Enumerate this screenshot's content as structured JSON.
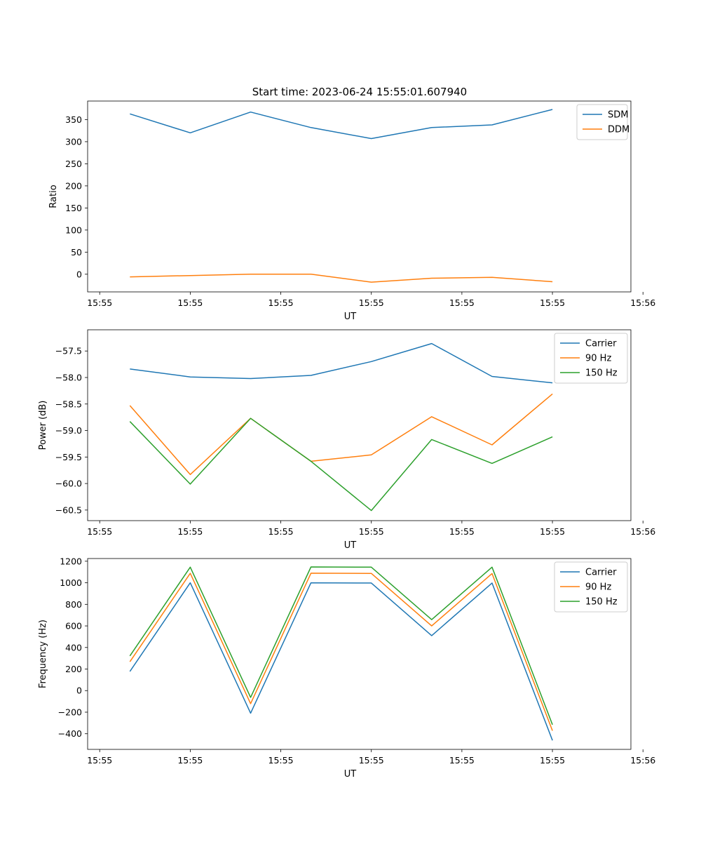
{
  "figure": {
    "title": "Start time: 2023-06-24 15:55:01.607940"
  },
  "colors": {
    "blue": "#1f77b4",
    "orange": "#ff7f0e",
    "green": "#2ca02c"
  },
  "chart_data": [
    {
      "type": "line",
      "title": "Start time: 2023-06-24 15:55:01.607940",
      "xlabel": "UT",
      "ylabel": "Ratio",
      "x": [
        1,
        2,
        3,
        4,
        5,
        6,
        7,
        8
      ],
      "xlim": [
        0.3,
        9.3
      ],
      "xticks": [
        0.5,
        2,
        3.5,
        5,
        6.5,
        8,
        9.5
      ],
      "xtick_labels": [
        "15:55",
        "15:55",
        "15:55",
        "15:55",
        "15:55",
        "15:55",
        "15:56"
      ],
      "ylim": [
        -40,
        392
      ],
      "yticks": [
        0,
        50,
        100,
        150,
        200,
        250,
        300,
        350
      ],
      "ytick_labels": [
        "0",
        "50",
        "100",
        "150",
        "200",
        "250",
        "300",
        "350"
      ],
      "legend": "top-right",
      "grid": false,
      "series": [
        {
          "name": "SDM",
          "color": "#1f77b4",
          "values": [
            363,
            320,
            367,
            332,
            307,
            332,
            338,
            373
          ]
        },
        {
          "name": "DDM",
          "color": "#ff7f0e",
          "values": [
            -6,
            -3,
            0,
            0,
            -18,
            -9,
            -7,
            -17
          ]
        }
      ]
    },
    {
      "type": "line",
      "xlabel": "UT",
      "ylabel": "Power (dB)",
      "x": [
        1,
        2,
        3,
        4,
        5,
        6,
        7,
        8
      ],
      "xlim": [
        0.3,
        9.3
      ],
      "xticks": [
        0.5,
        2,
        3.5,
        5,
        6.5,
        8,
        9.5
      ],
      "xtick_labels": [
        "15:55",
        "15:55",
        "15:55",
        "15:55",
        "15:55",
        "15:55",
        "15:56"
      ],
      "ylim": [
        -60.7,
        -57.1
      ],
      "yticks": [
        -60.5,
        -60.0,
        -59.5,
        -59.0,
        -58.5,
        -58.0,
        -57.5
      ],
      "ytick_labels": [
        "−60.5",
        "−60.0",
        "−59.5",
        "−59.0",
        "−58.5",
        "−58.0",
        "−57.5"
      ],
      "legend": "top-right",
      "grid": false,
      "series": [
        {
          "name": "Carrier",
          "color": "#1f77b4",
          "values": [
            -57.84,
            -57.99,
            -58.02,
            -57.96,
            -57.7,
            -57.36,
            -57.98,
            -58.1
          ]
        },
        {
          "name": "90 Hz",
          "color": "#ff7f0e",
          "values": [
            -58.53,
            -59.83,
            -58.77,
            -59.58,
            -59.46,
            -58.74,
            -59.27,
            -58.31
          ]
        },
        {
          "name": "150 Hz",
          "color": "#2ca02c",
          "values": [
            -58.83,
            -60.01,
            -58.77,
            -59.58,
            -60.51,
            -59.17,
            -59.62,
            -59.12
          ]
        }
      ]
    },
    {
      "type": "line",
      "xlabel": "UT",
      "ylabel": "Frequency (Hz)",
      "x": [
        1,
        2,
        3,
        4,
        5,
        6,
        7,
        8
      ],
      "xlim": [
        0.3,
        9.3
      ],
      "xticks": [
        0.5,
        2,
        3.5,
        5,
        6.5,
        8,
        9.5
      ],
      "xtick_labels": [
        "15:55",
        "15:55",
        "15:55",
        "15:55",
        "15:55",
        "15:55",
        "15:56"
      ],
      "ylim": [
        -545,
        1225
      ],
      "yticks": [
        -400,
        -200,
        0,
        200,
        400,
        600,
        800,
        1000,
        1200
      ],
      "ytick_labels": [
        "−400",
        "−200",
        "0",
        "200",
        "400",
        "600",
        "800",
        "1000",
        "1200"
      ],
      "legend": "top-right",
      "grid": false,
      "series": [
        {
          "name": "Carrier",
          "color": "#1f77b4",
          "values": [
            178,
            1000,
            -209,
            1000,
            998,
            510,
            998,
            -462
          ]
        },
        {
          "name": "90 Hz",
          "color": "#ff7f0e",
          "values": [
            268,
            1088,
            -121,
            1089,
            1087,
            600,
            1086,
            -372
          ]
        },
        {
          "name": "150 Hz",
          "color": "#2ca02c",
          "values": [
            322,
            1145,
            -63,
            1147,
            1145,
            658,
            1145,
            -316
          ]
        }
      ]
    }
  ]
}
